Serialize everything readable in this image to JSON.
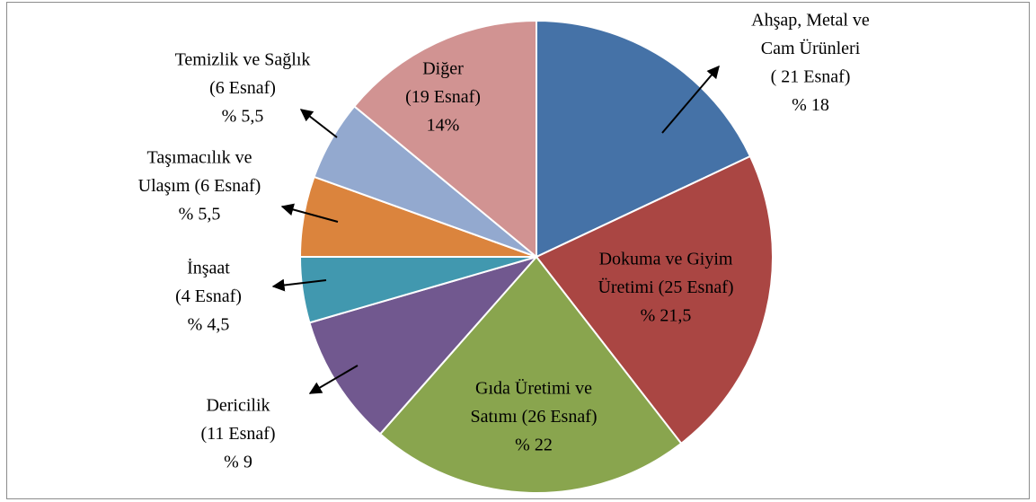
{
  "chart_data": {
    "type": "pie",
    "categories": [
      [
        "Ahşap, Metal ve",
        "Cam Ürünleri",
        "( 21 Esnaf)"
      ],
      [
        "Dokuma ve Giyim",
        "Üretimi (25 Esnaf)"
      ],
      [
        "Gıda Üretimi ve",
        "Satımı (26 Esnaf)"
      ],
      [
        "Dericilik",
        "(11 Esnaf)"
      ],
      [
        "İnşaat",
        "(4 Esnaf)"
      ],
      [
        "Taşımacılık ve",
        "Ulaşım (6 Esnaf)"
      ],
      [
        "Temizlik ve Sağlık",
        "(6 Esnaf)"
      ],
      [
        "Diğer",
        "(19 Esnaf)"
      ]
    ],
    "values": [
      18,
      21.5,
      22,
      9,
      4.5,
      5.5,
      5.5,
      14
    ],
    "value_labels": [
      "% 18",
      "% 21,5",
      "% 22",
      "% 9",
      "% 4,5",
      "% 5,5",
      "% 5,5",
      "14%"
    ],
    "colors": [
      "#4572a7",
      "#aa4643",
      "#89a54e",
      "#71588f",
      "#4198af",
      "#db843d",
      "#93a9cf",
      "#d19392"
    ]
  }
}
